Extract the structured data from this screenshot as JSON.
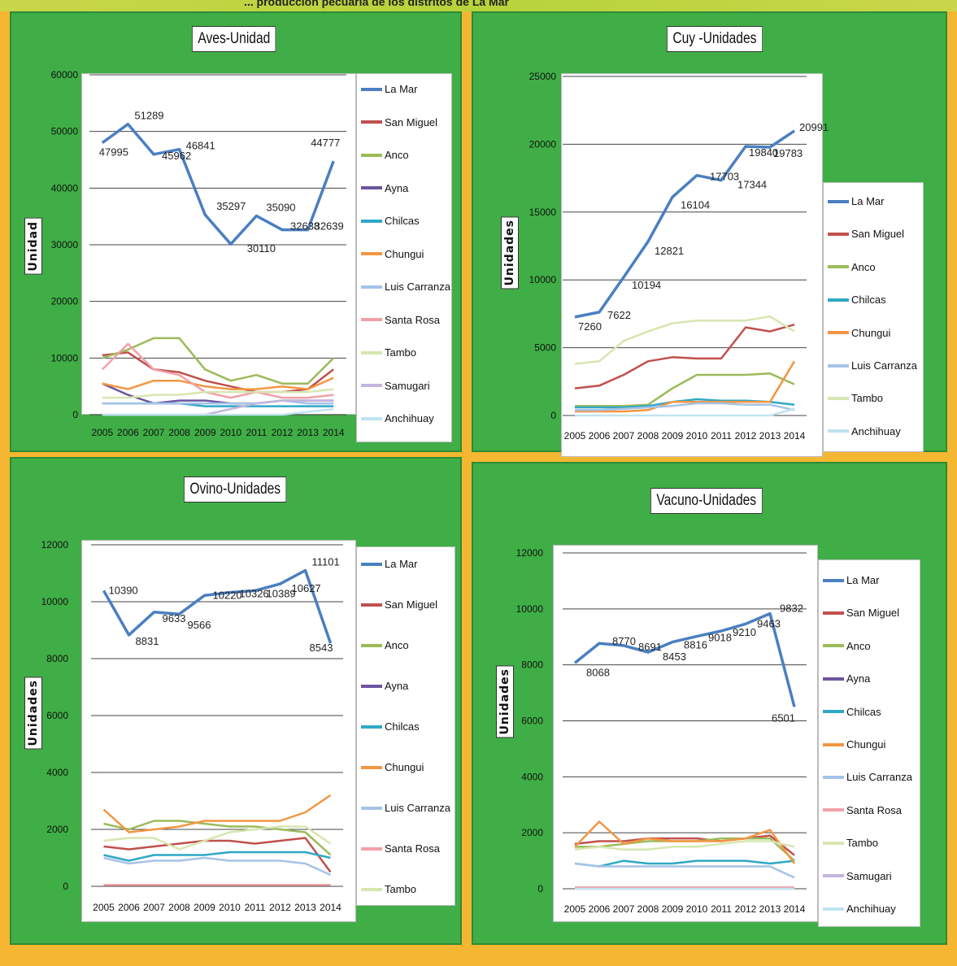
{
  "page": {
    "title": "... producción pecuaria de los distritos de La Mar"
  },
  "colors": {
    "La Mar": "#4a7fc1",
    "San Miguel": "#c0504d",
    "Anco": "#9bbb59",
    "Ayna": "#6d55a0",
    "Chilcas": "#2fa8c6",
    "Chungui": "#f39643",
    "Luis Carranza": "#a5c3e8",
    "Santa Rosa": "#f2a0a8",
    "Tambo": "#d7e6b0",
    "Samugari": "#c3b5dc",
    "Anchihuay": "#bfe3ef"
  },
  "chart_data": [
    {
      "type": "line",
      "title": "Aves-Unidad",
      "ylabel": "Unidad",
      "xlabel": "",
      "ylim": [
        0,
        60000
      ],
      "yticks": [
        0,
        10000,
        20000,
        30000,
        40000,
        50000,
        60000
      ],
      "x": [
        "2005",
        "2006",
        "2007",
        "2008",
        "2009",
        "2010",
        "2011",
        "2012",
        "2013",
        "2014"
      ],
      "legend": [
        "La Mar",
        "San Miguel",
        "Anco",
        "Ayna",
        "Chilcas",
        "Chungui",
        "Luis Carranza",
        "Santa Rosa",
        "Tambo",
        "Samugari",
        "Anchihuay"
      ],
      "data_labels": [
        {
          "text": "47995",
          "i": 0,
          "dx": -4,
          "dy": 16
        },
        {
          "text": "51289",
          "i": 1,
          "dx": 8,
          "dy": -6
        },
        {
          "text": "45962",
          "i": 2,
          "dx": 10,
          "dy": 6
        },
        {
          "text": "46841",
          "i": 3,
          "dx": 8,
          "dy": 0
        },
        {
          "text": "35297",
          "i": 4,
          "dx": 14,
          "dy": -6
        },
        {
          "text": "30110",
          "i": 5,
          "dx": 20,
          "dy": 10
        },
        {
          "text": "35090",
          "i": 6,
          "dx": 12,
          "dy": -6
        },
        {
          "text": "32638",
          "i": 7,
          "dx": 10,
          "dy": 0
        },
        {
          "text": "32639",
          "i": 8,
          "dx": 8,
          "dy": 0
        },
        {
          "text": "44777",
          "i": 9,
          "dx": -28,
          "dy": -18
        }
      ],
      "series": [
        {
          "name": "La Mar",
          "values": [
            47995,
            51289,
            45962,
            46841,
            35297,
            30110,
            35090,
            32638,
            32639,
            44777
          ],
          "width": 3.5
        },
        {
          "name": "San Miguel",
          "values": [
            10500,
            11000,
            8000,
            7500,
            6000,
            5000,
            4000,
            4000,
            4500,
            8000
          ]
        },
        {
          "name": "Anco",
          "values": [
            10000,
            11500,
            13500,
            13500,
            8000,
            6000,
            7000,
            5500,
            5500,
            10000
          ]
        },
        {
          "name": "Ayna",
          "values": [
            5500,
            3500,
            2000,
            2500,
            2500,
            2000,
            2000,
            2500,
            2500,
            2500
          ]
        },
        {
          "name": "Chilcas",
          "values": [
            2000,
            2000,
            2000,
            2000,
            1500,
            1500,
            1500,
            1500,
            1500,
            1500
          ]
        },
        {
          "name": "Chungui",
          "values": [
            5500,
            4500,
            6000,
            6000,
            5000,
            4500,
            4500,
            5000,
            4500,
            6500
          ]
        },
        {
          "name": "Luis Carranza",
          "values": [
            2000,
            2000,
            2000,
            2000,
            2000,
            2000,
            2000,
            2500,
            2000,
            2000
          ]
        },
        {
          "name": "Santa Rosa",
          "values": [
            8000,
            12500,
            8000,
            7000,
            4000,
            3000,
            4000,
            3000,
            3000,
            3500
          ]
        },
        {
          "name": "Tambo",
          "values": [
            3000,
            3000,
            3500,
            3500,
            4000,
            4000,
            4000,
            4000,
            4000,
            4500
          ]
        },
        {
          "name": "Samugari",
          "values": [
            0,
            0,
            0,
            0,
            0,
            1000,
            2000,
            2500,
            2500,
            2500
          ]
        },
        {
          "name": "Anchihuay",
          "values": [
            0,
            0,
            0,
            0,
            0,
            0,
            0,
            0,
            500,
            1000
          ]
        }
      ]
    },
    {
      "type": "line",
      "title": "Cuy -Unidades",
      "ylabel": "Unidades",
      "xlabel": "",
      "ylim": [
        0,
        25000
      ],
      "yticks": [
        0,
        5000,
        10000,
        15000,
        20000,
        25000
      ],
      "x": [
        "2005",
        "2006",
        "2007",
        "2008",
        "2009",
        "2010",
        "2011",
        "2012",
        "2013",
        "2014"
      ],
      "legend": [
        "La Mar",
        "San Miguel",
        "Anco",
        "Chilcas",
        "Chungui",
        "Luis Carranza",
        "Tambo",
        "Anchihuay"
      ],
      "data_labels": [
        {
          "text": "7260",
          "i": 0,
          "dx": 4,
          "dy": 16
        },
        {
          "text": "7622",
          "i": 1,
          "dx": 10,
          "dy": 8
        },
        {
          "text": "10194",
          "i": 2,
          "dx": 10,
          "dy": 14
        },
        {
          "text": "12821",
          "i": 3,
          "dx": 8,
          "dy": 16
        },
        {
          "text": "16104",
          "i": 4,
          "dx": 10,
          "dy": 14
        },
        {
          "text": "17703",
          "i": 5,
          "dx": 16,
          "dy": 6
        },
        {
          "text": "17344",
          "i": 6,
          "dx": 20,
          "dy": 10
        },
        {
          "text": "19840",
          "i": 7,
          "dx": 4,
          "dy": 12
        },
        {
          "text": "19783",
          "i": 8,
          "dx": 4,
          "dy": 12
        },
        {
          "text": "20991",
          "i": 9,
          "dx": 6,
          "dy": 0
        }
      ],
      "series": [
        {
          "name": "La Mar",
          "values": [
            7260,
            7622,
            10194,
            12821,
            16104,
            17703,
            17344,
            19840,
            19783,
            20991
          ],
          "width": 3.5
        },
        {
          "name": "San Miguel",
          "values": [
            2000,
            2200,
            3000,
            4000,
            4300,
            4200,
            4200,
            6500,
            6200,
            6700
          ]
        },
        {
          "name": "Anco",
          "values": [
            700,
            700,
            700,
            800,
            2000,
            3000,
            3000,
            3000,
            3100,
            2300
          ]
        },
        {
          "name": "Chilcas",
          "values": [
            600,
            600,
            600,
            700,
            1000,
            1200,
            1100,
            1100,
            1000,
            800
          ]
        },
        {
          "name": "Chungui",
          "values": [
            300,
            300,
            300,
            400,
            1000,
            1000,
            1000,
            1000,
            1000,
            4000
          ]
        },
        {
          "name": "Luis Carranza",
          "values": [
            400,
            400,
            500,
            600,
            700,
            900,
            900,
            800,
            800,
            400
          ]
        },
        {
          "name": "Tambo",
          "values": [
            3800,
            4000,
            5500,
            6200,
            6800,
            7000,
            7000,
            7000,
            7300,
            6200
          ]
        },
        {
          "name": "Anchihuay",
          "values": [
            0,
            0,
            0,
            0,
            0,
            0,
            0,
            0,
            0,
            500
          ]
        }
      ]
    },
    {
      "type": "line",
      "title": "Ovino-Unidades",
      "ylabel": "Unidades",
      "xlabel": "",
      "ylim": [
        0,
        12000
      ],
      "yticks": [
        0,
        2000,
        4000,
        6000,
        8000,
        10000,
        12000
      ],
      "x": [
        "2005",
        "2006",
        "2007",
        "2008",
        "2009",
        "2010",
        "2011",
        "2012",
        "2013",
        "2014"
      ],
      "legend": [
        "La Mar",
        "San Miguel",
        "Anco",
        "Ayna",
        "Chilcas",
        "Chungui",
        "Luis Carranza",
        "Santa Rosa",
        "Tambo"
      ],
      "data_labels": [
        {
          "text": "10390",
          "i": 0,
          "dx": 6,
          "dy": 4
        },
        {
          "text": "8831",
          "i": 1,
          "dx": 8,
          "dy": 12
        },
        {
          "text": "9633",
          "i": 2,
          "dx": 10,
          "dy": 12
        },
        {
          "text": "9566",
          "i": 3,
          "dx": 10,
          "dy": 18
        },
        {
          "text": "10220",
          "i": 4,
          "dx": 10,
          "dy": 4
        },
        {
          "text": "10326",
          "i": 5,
          "dx": 12,
          "dy": 6
        },
        {
          "text": "10389",
          "i": 6,
          "dx": 14,
          "dy": 8
        },
        {
          "text": "10627",
          "i": 7,
          "dx": 14,
          "dy": 10
        },
        {
          "text": "11101",
          "i": 8,
          "dx": 8,
          "dy": -6
        },
        {
          "text": "8543",
          "i": 9,
          "dx": -26,
          "dy": 10
        }
      ],
      "series": [
        {
          "name": "La Mar",
          "values": [
            10390,
            8831,
            9633,
            9566,
            10220,
            10326,
            10389,
            10627,
            11101,
            8543
          ],
          "width": 3.5
        },
        {
          "name": "San Miguel",
          "values": [
            1400,
            1300,
            1400,
            1500,
            1600,
            1600,
            1500,
            1600,
            1700,
            500
          ]
        },
        {
          "name": "Anco",
          "values": [
            2200,
            2000,
            2300,
            2300,
            2200,
            2100,
            2100,
            2000,
            1900,
            1100
          ]
        },
        {
          "name": "Ayna",
          "values": [
            50,
            50,
            50,
            50,
            50,
            50,
            50,
            50,
            50,
            50
          ]
        },
        {
          "name": "Chilcas",
          "values": [
            1100,
            900,
            1100,
            1100,
            1100,
            1200,
            1200,
            1200,
            1200,
            1000
          ]
        },
        {
          "name": "Chungui",
          "values": [
            2700,
            1900,
            2000,
            2100,
            2300,
            2300,
            2300,
            2300,
            2600,
            3200
          ]
        },
        {
          "name": "Luis Carranza",
          "values": [
            1000,
            800,
            900,
            900,
            1000,
            900,
            900,
            900,
            800,
            400
          ]
        },
        {
          "name": "Santa Rosa",
          "values": [
            50,
            50,
            50,
            50,
            50,
            50,
            50,
            50,
            50,
            50
          ]
        },
        {
          "name": "Tambo",
          "values": [
            1600,
            1700,
            1700,
            1300,
            1600,
            1900,
            2000,
            2100,
            2100,
            1500
          ]
        }
      ]
    },
    {
      "type": "line",
      "title": "Vacuno-Unidades",
      "ylabel": "Unidades",
      "xlabel": "",
      "ylim": [
        0,
        12000
      ],
      "yticks": [
        0,
        2000,
        4000,
        6000,
        8000,
        10000,
        12000
      ],
      "x": [
        "2005",
        "2006",
        "2007",
        "2008",
        "2009",
        "2010",
        "2011",
        "2012",
        "2013",
        "2014"
      ],
      "legend": [
        "La Mar",
        "San Miguel",
        "Anco",
        "Ayna",
        "Chilcas",
        "Chungui",
        "Luis Carranza",
        "Santa Rosa",
        "Tambo",
        "Samugari",
        "Anchihuay"
      ],
      "data_labels": [
        {
          "text": "8068",
          "i": 0,
          "dx": 14,
          "dy": 16
        },
        {
          "text": "8770",
          "i": 1,
          "dx": 16,
          "dy": 2
        },
        {
          "text": "8691",
          "i": 2,
          "dx": 18,
          "dy": 6
        },
        {
          "text": "8453",
          "i": 3,
          "dx": 18,
          "dy": 10
        },
        {
          "text": "8816",
          "i": 4,
          "dx": 14,
          "dy": 8
        },
        {
          "text": "9018",
          "i": 5,
          "dx": 14,
          "dy": 6
        },
        {
          "text": "9210",
          "i": 6,
          "dx": 14,
          "dy": 6
        },
        {
          "text": "9463",
          "i": 7,
          "dx": 14,
          "dy": 4
        },
        {
          "text": "9832",
          "i": 8,
          "dx": 12,
          "dy": -2
        },
        {
          "text": "6501",
          "i": 9,
          "dx": -28,
          "dy": 18
        }
      ],
      "series": [
        {
          "name": "La Mar",
          "values": [
            8068,
            8770,
            8691,
            8453,
            8816,
            9018,
            9210,
            9463,
            9832,
            6501
          ],
          "width": 3.5
        },
        {
          "name": "San Miguel",
          "values": [
            1600,
            1700,
            1700,
            1800,
            1800,
            1800,
            1700,
            1800,
            1900,
            1200
          ]
        },
        {
          "name": "Anco",
          "values": [
            1500,
            1500,
            1600,
            1700,
            1700,
            1700,
            1800,
            1800,
            1800,
            1000
          ]
        },
        {
          "name": "Ayna",
          "values": [
            50,
            50,
            50,
            50,
            50,
            50,
            50,
            50,
            50,
            50
          ]
        },
        {
          "name": "Chilcas",
          "values": [
            900,
            800,
            1000,
            900,
            900,
            1000,
            1000,
            1000,
            900,
            1000
          ]
        },
        {
          "name": "Chungui",
          "values": [
            1500,
            2400,
            1600,
            1800,
            1700,
            1700,
            1700,
            1800,
            2100,
            900
          ]
        },
        {
          "name": "Luis Carranza",
          "values": [
            900,
            800,
            800,
            800,
            800,
            800,
            800,
            800,
            800,
            400
          ]
        },
        {
          "name": "Santa Rosa",
          "values": [
            50,
            50,
            50,
            50,
            50,
            50,
            50,
            50,
            50,
            50
          ]
        },
        {
          "name": "Tambo",
          "values": [
            1400,
            1500,
            1400,
            1400,
            1500,
            1500,
            1600,
            1700,
            1700,
            1500
          ]
        },
        {
          "name": "Samugari",
          "values": [
            0,
            0,
            0,
            0,
            0,
            0,
            0,
            0,
            0,
            0
          ]
        },
        {
          "name": "Anchihuay",
          "values": [
            0,
            0,
            0,
            0,
            0,
            0,
            0,
            0,
            0,
            0
          ]
        }
      ]
    }
  ]
}
